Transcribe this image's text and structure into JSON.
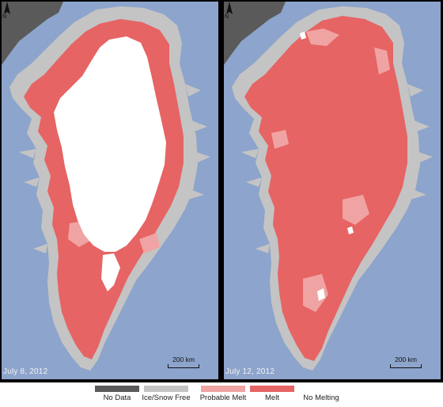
{
  "panels": [
    {
      "date": "July 8, 2012",
      "scale": "200 km"
    },
    {
      "date": "July 12, 2012",
      "scale": "200 km"
    }
  ],
  "north_label": "N",
  "legend": [
    {
      "label": "No Data",
      "color": "#5a5a5a"
    },
    {
      "label": "Ice/Snow Free",
      "color": "#c4c4c4"
    },
    {
      "label": "Probable Melt",
      "color": "#f0a3a3"
    },
    {
      "label": "Melt",
      "color": "#e66464"
    },
    {
      "label": "No Melting",
      "color": "#ffffff"
    }
  ],
  "colors": {
    "ocean": "#8da4cc",
    "land": "#c4c4c4",
    "nodata": "#5a5a5a",
    "melt": "#e66464",
    "probable": "#f0a3a3",
    "nomelt": "#ffffff"
  }
}
